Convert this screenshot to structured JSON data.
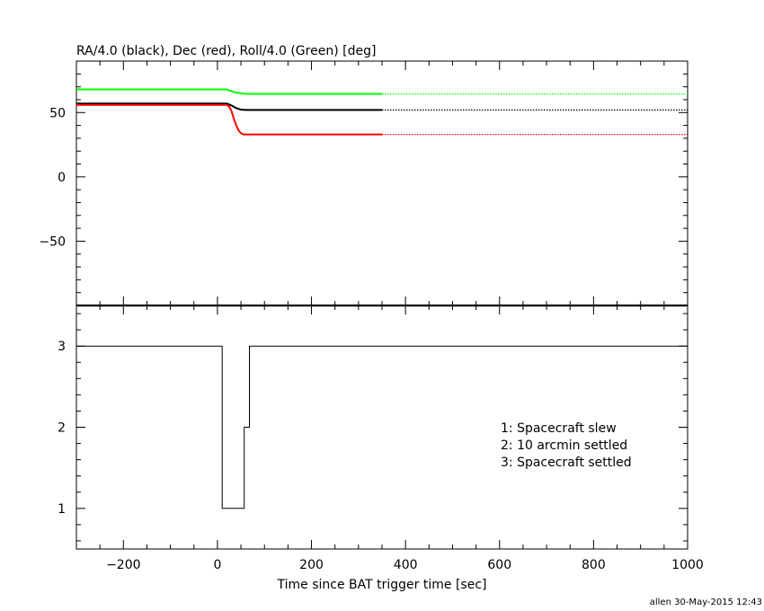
{
  "chart_data": [
    {
      "type": "line",
      "title": "RA/4.0 (black), Dec (red), Roll/4.0 (Green) [deg]",
      "xlim": [
        -300,
        1000
      ],
      "ylim": [
        -100,
        90
      ],
      "yticks": [
        50,
        0,
        -50
      ],
      "series": [
        {
          "color": "#000000",
          "solid_until": 350,
          "points": [
            [
              -300,
              57
            ],
            [
              0,
              57
            ],
            [
              20,
              57
            ],
            [
              30,
              55.5
            ],
            [
              40,
              53.5
            ],
            [
              50,
              52.3
            ],
            [
              60,
              52
            ],
            [
              350,
              52
            ],
            [
              1000,
              52
            ]
          ]
        },
        {
          "color": "#ff0000",
          "solid_until": 350,
          "points": [
            [
              -300,
              56
            ],
            [
              0,
              56
            ],
            [
              20,
              56
            ],
            [
              25,
              54.5
            ],
            [
              30,
              51
            ],
            [
              35,
              45
            ],
            [
              40,
              40
            ],
            [
              45,
              36
            ],
            [
              50,
              34
            ],
            [
              55,
              33
            ],
            [
              60,
              33
            ],
            [
              350,
              33
            ],
            [
              1000,
              33
            ]
          ]
        },
        {
          "color": "#00ff00",
          "solid_until": 350,
          "points": [
            [
              -300,
              68
            ],
            [
              0,
              68
            ],
            [
              20,
              68
            ],
            [
              30,
              66.5
            ],
            [
              40,
              65.5
            ],
            [
              50,
              65
            ],
            [
              60,
              64.5
            ],
            [
              350,
              64.5
            ],
            [
              1000,
              64.5
            ]
          ]
        }
      ]
    },
    {
      "type": "line",
      "xlabel": "Time since BAT trigger time [sec]",
      "xlim": [
        -300,
        1000
      ],
      "ylim": [
        0.5,
        3.5
      ],
      "xticks": [
        -200,
        0,
        200,
        400,
        600,
        800,
        1000
      ],
      "yticks": [
        1,
        2,
        3
      ],
      "step_points": [
        [
          -300,
          3
        ],
        [
          10,
          3
        ],
        [
          10,
          1
        ],
        [
          57,
          1
        ],
        [
          57,
          2
        ],
        [
          68,
          2
        ],
        [
          68,
          3
        ],
        [
          1000,
          3
        ]
      ],
      "legend": [
        "1: Spacecraft slew",
        "2: 10 arcmin settled",
        "3: Spacecraft settled"
      ]
    }
  ],
  "footer": "allen 30-May-2015 12:43"
}
